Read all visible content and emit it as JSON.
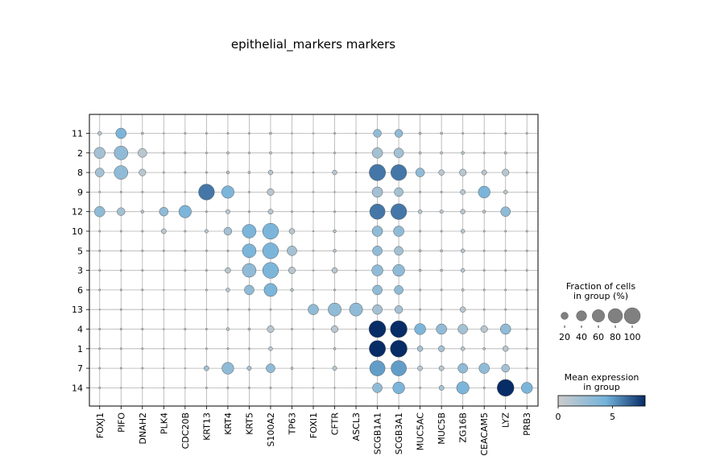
{
  "chart_data": {
    "type": "dotplot",
    "title": "epithelial_markers markers",
    "genes": [
      "FOXJ1",
      "PIFO",
      "DNAH2",
      "PLK4",
      "CDC20B",
      "KRT13",
      "KRT4",
      "KRT5",
      "S100A2",
      "TP63",
      "FOXI1",
      "CFTR",
      "ASCL3",
      "SCGB1A1",
      "SCGB3A1",
      "MUC5AC",
      "MUC5B",
      "ZG16B",
      "CEACAM5",
      "LYZ",
      "PRB3"
    ],
    "groups": [
      "11",
      "2",
      "8",
      "9",
      "12",
      "10",
      "5",
      "3",
      "6",
      "13",
      "4",
      "1",
      "7",
      "14"
    ],
    "size_legend": {
      "title_lines": [
        "Fraction of cells",
        "in group (%)"
      ],
      "values": [
        20,
        40,
        60,
        80,
        100
      ],
      "labels": [
        "20",
        "40",
        "60",
        "80",
        "100"
      ]
    },
    "color_legend": {
      "title_lines": [
        "Mean expression",
        "in group"
      ],
      "vmin": 0,
      "vmax": 8,
      "ticks": [
        0,
        5
      ],
      "tick_labels": [
        "0",
        "5"
      ],
      "colors": [
        "#cccccc",
        "#74b3db",
        "#072c66"
      ]
    },
    "fraction": [
      [
        5,
        35,
        2,
        0,
        1,
        1,
        1,
        1,
        2,
        0,
        0,
        1,
        0,
        20,
        20,
        2,
        2,
        1,
        0,
        1,
        1
      ],
      [
        40,
        60,
        25,
        1,
        1,
        1,
        2,
        1,
        2,
        0,
        0,
        1,
        0,
        35,
        30,
        2,
        2,
        3,
        1,
        2,
        0
      ],
      [
        25,
        60,
        15,
        1,
        1,
        1,
        3,
        2,
        7,
        1,
        0,
        7,
        0,
        85,
        80,
        25,
        10,
        15,
        8,
        15,
        1
      ],
      [
        1,
        1,
        1,
        0,
        0,
        80,
        50,
        1,
        15,
        0,
        0,
        0,
        0,
        35,
        25,
        1,
        1,
        8,
        45,
        5,
        0
      ],
      [
        35,
        20,
        3,
        25,
        50,
        1,
        6,
        1,
        8,
        1,
        0,
        1,
        0,
        75,
        80,
        5,
        4,
        7,
        3,
        30,
        0
      ],
      [
        1,
        1,
        1,
        8,
        1,
        4,
        20,
        60,
        80,
        10,
        0,
        3,
        0,
        35,
        35,
        1,
        1,
        5,
        1,
        1,
        1
      ],
      [
        1,
        1,
        1,
        1,
        1,
        1,
        1,
        60,
        80,
        30,
        0,
        3,
        0,
        30,
        25,
        2,
        2,
        5,
        1,
        1,
        1
      ],
      [
        1,
        1,
        1,
        0,
        1,
        1,
        10,
        60,
        80,
        15,
        0,
        10,
        0,
        40,
        45,
        2,
        2,
        5,
        1,
        1,
        1
      ],
      [
        1,
        1,
        1,
        0,
        0,
        1,
        5,
        30,
        55,
        3,
        0,
        1,
        0,
        30,
        25,
        1,
        1,
        2,
        1,
        1,
        1
      ],
      [
        0,
        1,
        0,
        0,
        0,
        0,
        1,
        1,
        1,
        0,
        35,
        55,
        55,
        30,
        20,
        1,
        1,
        10,
        1,
        1,
        0
      ],
      [
        1,
        1,
        1,
        0,
        1,
        1,
        3,
        2,
        15,
        1,
        0,
        15,
        0,
        90,
        90,
        40,
        35,
        30,
        15,
        35,
        1
      ],
      [
        1,
        1,
        1,
        0,
        0,
        1,
        1,
        1,
        5,
        0,
        0,
        2,
        0,
        85,
        90,
        10,
        12,
        5,
        2,
        10,
        1
      ],
      [
        1,
        1,
        1,
        0,
        0,
        8,
        45,
        6,
        25,
        2,
        0,
        6,
        0,
        75,
        75,
        8,
        8,
        30,
        35,
        20,
        1
      ],
      [
        1,
        0,
        0,
        0,
        0,
        1,
        1,
        1,
        1,
        0,
        0,
        0,
        0,
        30,
        45,
        1,
        8,
        50,
        1,
        90,
        40
      ]
    ],
    "expression": [
      [
        1,
        4,
        1,
        0,
        1,
        1,
        1,
        1,
        1,
        0,
        0,
        1,
        0,
        3,
        3,
        1,
        1,
        1,
        0,
        1,
        1
      ],
      [
        2,
        3,
        1,
        0,
        1,
        1,
        1,
        1,
        1,
        0,
        0,
        1,
        0,
        2,
        2,
        1,
        1,
        1,
        1,
        1,
        0
      ],
      [
        2,
        3,
        1,
        0,
        1,
        1,
        1,
        1,
        1,
        0,
        0,
        1,
        0,
        6,
        6,
        3,
        1,
        1,
        1,
        1,
        0
      ],
      [
        0,
        1,
        0,
        0,
        0,
        6,
        4,
        0,
        1,
        0,
        0,
        0,
        0,
        2,
        2,
        1,
        1,
        1,
        4,
        1,
        0
      ],
      [
        3,
        2,
        1,
        3,
        4,
        1,
        1,
        1,
        1,
        1,
        0,
        1,
        0,
        6,
        6,
        1,
        1,
        1,
        1,
        3,
        0
      ],
      [
        1,
        1,
        1,
        1,
        1,
        1,
        2,
        4,
        4,
        1,
        0,
        1,
        0,
        3,
        3,
        1,
        1,
        1,
        1,
        1,
        1
      ],
      [
        1,
        1,
        1,
        1,
        1,
        1,
        1,
        4,
        4,
        2,
        0,
        1,
        0,
        3,
        2,
        1,
        1,
        1,
        1,
        1,
        1
      ],
      [
        1,
        1,
        1,
        0,
        1,
        1,
        1,
        3,
        4,
        1,
        0,
        1,
        0,
        3,
        3,
        1,
        1,
        1,
        1,
        1,
        1
      ],
      [
        1,
        1,
        1,
        0,
        0,
        1,
        1,
        3,
        4,
        1,
        0,
        1,
        0,
        3,
        3,
        1,
        1,
        1,
        1,
        1,
        1
      ],
      [
        0,
        1,
        0,
        0,
        0,
        0,
        1,
        1,
        1,
        0,
        3,
        3,
        3,
        2,
        2,
        1,
        1,
        1,
        1,
        1,
        0
      ],
      [
        1,
        1,
        1,
        0,
        1,
        1,
        1,
        1,
        1,
        1,
        0,
        1,
        0,
        8,
        8,
        4,
        3,
        2,
        1,
        3,
        1
      ],
      [
        1,
        1,
        1,
        0,
        0,
        1,
        1,
        1,
        1,
        0,
        0,
        1,
        0,
        9,
        9,
        2,
        2,
        1,
        1,
        1,
        1
      ],
      [
        1,
        1,
        1,
        0,
        0,
        2,
        3,
        2,
        3,
        1,
        0,
        1,
        0,
        5,
        5,
        1,
        1,
        3,
        3,
        2,
        1
      ],
      [
        1,
        0,
        0,
        0,
        0,
        1,
        1,
        1,
        1,
        0,
        0,
        0,
        0,
        3,
        4,
        1,
        2,
        4,
        1,
        8,
        4
      ]
    ]
  }
}
